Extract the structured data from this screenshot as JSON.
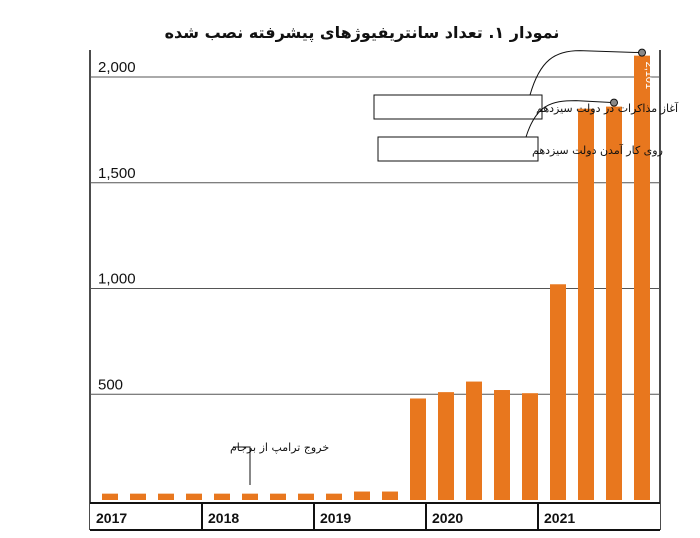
{
  "chart_data": {
    "type": "bar",
    "title": "نمودار ۱. تعداد سانتریفیوژهای پیشرفته نصب شده",
    "ylim": [
      0,
      2200
    ],
    "yticks": [
      {
        "value": 500,
        "label": "500"
      },
      {
        "value": 1000,
        "label": "1,000"
      },
      {
        "value": 1500,
        "label": "1,500"
      },
      {
        "value": 2000,
        "label": "2,000"
      }
    ],
    "grid": true,
    "years": [
      "2017",
      "2018",
      "2019",
      "2020",
      "2021"
    ],
    "values": [
      30,
      30,
      30,
      30,
      30,
      30,
      30,
      30,
      30,
      40,
      40,
      480,
      510,
      560,
      520,
      505,
      1020,
      1850,
      1860,
      2101
    ],
    "bar_color": "#E8771E",
    "data_labels": [
      {
        "index": 19,
        "text": "2,101"
      }
    ],
    "annotations": [
      {
        "text": "آغاز مذاکرات در دولت سیزدهم",
        "bar_index": 19
      },
      {
        "text": "روی کار آمدن دولت سیزدهم",
        "bar_index": 18
      },
      {
        "text": "خروج ترامپ از برجام",
        "bar_index": 5
      }
    ]
  }
}
